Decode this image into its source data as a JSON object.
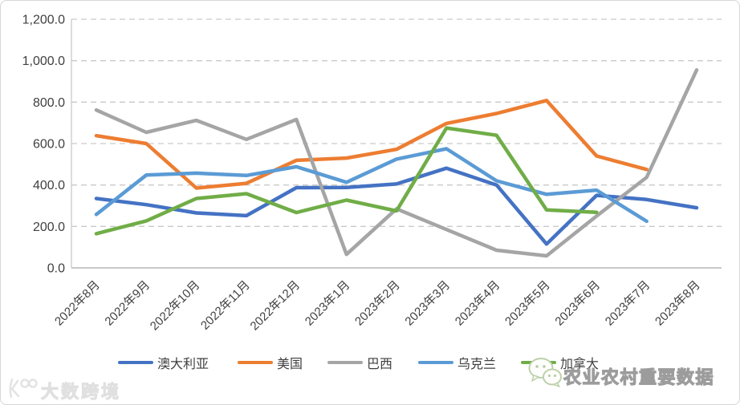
{
  "chart_data": {
    "type": "line",
    "title": "",
    "xlabel": "",
    "ylabel": "",
    "legend_position": "bottom",
    "grid": "horizontal-dashed",
    "categories": [
      "2022年8月",
      "2022年9月",
      "2022年10月",
      "2022年11月",
      "2022年12月",
      "2023年1月",
      "2023年2月",
      "2023年3月",
      "2023年4月",
      "2023年5月",
      "2023年6月",
      "2023年7月",
      "2023年8月"
    ],
    "y_axis": {
      "min": 0,
      "max": 1200,
      "step": 200,
      "tick_labels": [
        "0.0",
        "200.0",
        "400.0",
        "600.0",
        "800.0",
        "1,000.0",
        "1,200.0"
      ]
    },
    "series": [
      {
        "id": "australia",
        "name": "澳大利亚",
        "color": "#4472C4",
        "values": [
          335,
          305,
          265,
          252,
          387,
          388,
          405,
          481,
          400,
          115,
          350,
          330,
          290
        ]
      },
      {
        "id": "usa",
        "name": "美国",
        "color": "#ED7D31",
        "values": [
          638,
          600,
          385,
          408,
          519,
          530,
          572,
          697,
          745,
          808,
          540,
          475,
          null
        ]
      },
      {
        "id": "brazil",
        "name": "巴西",
        "color": "#A5A5A5",
        "values": [
          762,
          654,
          712,
          620,
          716,
          65,
          285,
          185,
          85,
          58,
          250,
          437,
          955
        ]
      },
      {
        "id": "ukraine",
        "name": "乌克兰",
        "color": "#5B9BD5",
        "values": [
          258,
          448,
          457,
          446,
          488,
          413,
          525,
          575,
          420,
          355,
          375,
          225,
          null
        ]
      },
      {
        "id": "canada",
        "name": "加拿大",
        "color": "#70AD47",
        "values": [
          165,
          227,
          335,
          358,
          267,
          327,
          275,
          675,
          640,
          280,
          268,
          null,
          null
        ]
      }
    ]
  },
  "watermarks": {
    "right_text": "农业农村重要数据",
    "left_text": "大数跨境"
  }
}
